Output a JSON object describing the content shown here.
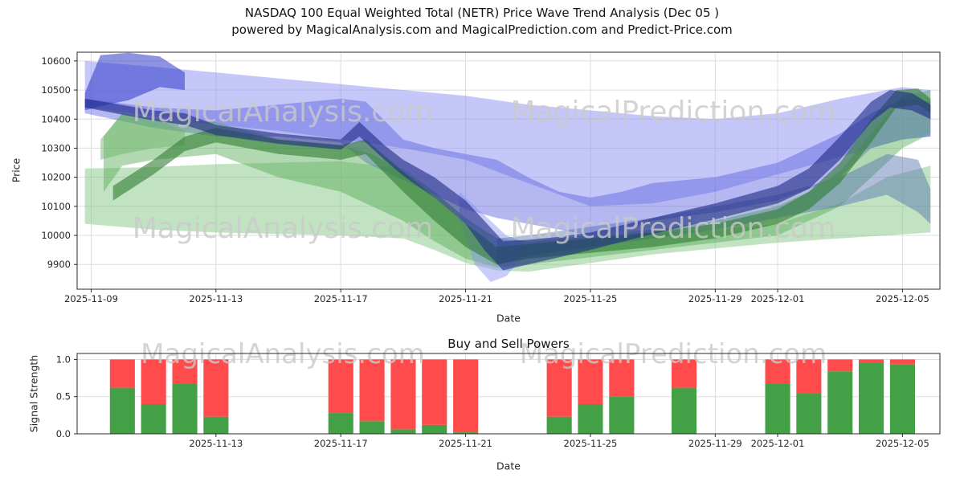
{
  "figure": {
    "title_line1": "NASDAQ 100 Equal Weighted Total (NETR) Price Wave Trend Analysis (Dec 05 )",
    "title_line2": "powered by MagicalAnalysis.com and MagicalPrediction.com and Predict-Price.com"
  },
  "watermarks": {
    "left_text": "MagicalAnalysis.com",
    "right_text": "MagicalPrediction.com",
    "color": "#c9c9c9"
  },
  "chart_data": [
    {
      "type": "area",
      "name": "price-wave-trend",
      "ylabel": "Price",
      "xlabel": "Date",
      "epoch_date": "2025-11-09",
      "xlim_days": [
        -0.45,
        27.2
      ],
      "ylim": [
        9815,
        10630
      ],
      "grid": true,
      "x_ticks": [
        {
          "date": "2025-11-09",
          "label": "2025-11-09"
        },
        {
          "date": "2025-11-13",
          "label": "2025-11-13"
        },
        {
          "date": "2025-11-17",
          "label": "2025-11-17"
        },
        {
          "date": "2025-11-21",
          "label": "2025-11-21"
        },
        {
          "date": "2025-11-25",
          "label": "2025-11-25"
        },
        {
          "date": "2025-11-29",
          "label": "2025-11-29"
        },
        {
          "date": "2025-12-01",
          "label": "2025-12-01"
        },
        {
          "date": "2025-12-05",
          "label": "2025-12-05"
        }
      ],
      "y_ticks": [
        {
          "value": 9900,
          "label": "9900"
        },
        {
          "value": 10000,
          "label": "10000"
        },
        {
          "value": 10100,
          "label": "10100"
        },
        {
          "value": 10200,
          "label": "10200"
        },
        {
          "value": 10300,
          "label": "10300"
        },
        {
          "value": 10400,
          "label": "10400"
        },
        {
          "value": 10500,
          "label": "10500"
        },
        {
          "value": 10600,
          "label": "10600"
        }
      ],
      "bands": [
        {
          "name": "blue-wide-upper",
          "color": "#8a8ff2",
          "opacity": 0.5,
          "days": [
            -0.2,
            2,
            4,
            6,
            8,
            10,
            12,
            14,
            16,
            18,
            20,
            22,
            24,
            26,
            26.9
          ],
          "upper": [
            10600,
            10580,
            10560,
            10540,
            10520,
            10500,
            10480,
            10450,
            10430,
            10410,
            10400,
            10420,
            10470,
            10510,
            10500
          ],
          "lower": [
            10440,
            10410,
            10380,
            10360,
            10330,
            10300,
            10260,
            10180,
            10100,
            10110,
            10150,
            10210,
            10270,
            10330,
            10340
          ]
        },
        {
          "name": "green-wide-lower",
          "color": "#86c786",
          "opacity": 0.5,
          "days": [
            -0.2,
            2,
            4,
            6,
            8,
            10,
            11,
            12,
            13,
            14,
            16,
            18,
            20,
            22,
            24,
            25.5,
            26.9
          ],
          "upper": [
            10230,
            10235,
            10245,
            10250,
            10255,
            10230,
            10150,
            10060,
            9990,
            9975,
            9995,
            10010,
            10020,
            10040,
            10110,
            10200,
            10240
          ],
          "lower": [
            10040,
            10020,
            10010,
            10005,
            10000,
            9990,
            9950,
            9905,
            9880,
            9875,
            9905,
            9935,
            9955,
            9975,
            9990,
            10000,
            10010
          ]
        },
        {
          "name": "blue-mid",
          "color": "#5a5fe0",
          "opacity": 0.45,
          "days": [
            -0.2,
            2,
            4,
            6,
            8,
            8.8,
            10,
            11,
            12,
            13,
            14,
            15,
            16,
            17,
            18,
            20,
            22,
            24,
            25,
            26,
            26.9
          ],
          "upper": [
            10470,
            10440,
            10430,
            10450,
            10470,
            10460,
            10330,
            10300,
            10280,
            10260,
            10200,
            10150,
            10130,
            10150,
            10180,
            10200,
            10250,
            10350,
            10420,
            10470,
            10460
          ],
          "lower": [
            10420,
            10370,
            10340,
            10340,
            10320,
            10250,
            10190,
            10140,
            10090,
            10060,
            10040,
            10020,
            10000,
            10010,
            10050,
            10080,
            10120,
            10200,
            10300,
            10330,
            10340
          ]
        },
        {
          "name": "green-mid",
          "color": "#55a855",
          "opacity": 0.45,
          "days": [
            0.4,
            1,
            2,
            4,
            6,
            8,
            9,
            10,
            11,
            12,
            13,
            14,
            16,
            18,
            20,
            22,
            23,
            24,
            25,
            26,
            26.9
          ],
          "upper": [
            10340,
            10420,
            10400,
            10390,
            10330,
            10310,
            10280,
            10220,
            10150,
            10060,
            9990,
            9980,
            10000,
            10020,
            10050,
            10100,
            10150,
            10220,
            10350,
            10480,
            10500
          ],
          "lower": [
            10150,
            10240,
            10260,
            10280,
            10200,
            10150,
            10100,
            10050,
            9980,
            9920,
            9890,
            9900,
            9925,
            9950,
            9975,
            10000,
            10050,
            10100,
            10200,
            10300,
            10350
          ]
        },
        {
          "name": "blue-down-spike",
          "color": "#8a8ff2",
          "opacity": 0.45,
          "days": [
            11.8,
            12.3,
            12.8,
            13.3,
            13.8
          ],
          "upper": [
            10150,
            10100,
            10050,
            10000,
            9980
          ],
          "lower": [
            10050,
            9900,
            9840,
            9860,
            9920
          ]
        },
        {
          "name": "steel-band-right",
          "color": "#4f6fb0",
          "opacity": 0.45,
          "days": [
            13,
            14,
            16,
            18,
            20,
            22,
            24,
            25.5,
            26.5,
            26.9
          ],
          "upper": [
            9990,
            10000,
            10030,
            10060,
            10100,
            10140,
            10200,
            10280,
            10260,
            10160
          ],
          "lower": [
            9900,
            9930,
            9960,
            9990,
            10020,
            10060,
            10100,
            10140,
            10080,
            10040
          ]
        },
        {
          "name": "green-blob-left",
          "color": "#63b463",
          "opacity": 0.45,
          "days": [
            0.3,
            1,
            2,
            3
          ],
          "upper": [
            10330,
            10420,
            10400,
            10360
          ],
          "lower": [
            10260,
            10280,
            10300,
            10310
          ]
        },
        {
          "name": "navy-blob-topleft",
          "color": "#3038c8",
          "opacity": 0.55,
          "days": [
            -0.2,
            0.3,
            1.2,
            2.2,
            3.0
          ],
          "upper": [
            10490,
            10620,
            10628,
            10615,
            10560
          ],
          "lower": [
            10430,
            10445,
            10465,
            10510,
            10500
          ]
        },
        {
          "name": "green-dark-line",
          "color": "#2f7d32",
          "opacity": 0.6,
          "days": [
            0.7,
            2,
            3,
            4,
            5,
            6,
            8,
            8.8,
            10,
            11,
            12,
            13,
            14,
            16,
            18,
            20,
            22,
            23,
            24,
            25,
            25.8,
            26.5,
            26.9
          ],
          "upper": [
            10170,
            10260,
            10340,
            10370,
            10350,
            10330,
            10310,
            10330,
            10220,
            10130,
            10040,
            9960,
            9970,
            9990,
            10010,
            10040,
            10090,
            10150,
            10250,
            10400,
            10500,
            10505,
            10470
          ],
          "lower": [
            10120,
            10210,
            10290,
            10320,
            10300,
            10280,
            10260,
            10280,
            10150,
            10050,
            9960,
            9900,
            9920,
            9940,
            9960,
            9990,
            10040,
            10090,
            10180,
            10320,
            10440,
            10450,
            10420
          ]
        },
        {
          "name": "navy-dark-line",
          "color": "#1e2a85",
          "opacity": 0.6,
          "days": [
            -0.2,
            2,
            3,
            4,
            6,
            8,
            8.6,
            9.4,
            10,
            11,
            12,
            12.6,
            13.2,
            14,
            15,
            16,
            18,
            20,
            22,
            23,
            24,
            25,
            25.6,
            26.3,
            26.9
          ],
          "upper": [
            10470,
            10430,
            10420,
            10380,
            10350,
            10330,
            10390,
            10310,
            10260,
            10200,
            10120,
            10050,
            9980,
            9985,
            9995,
            10010,
            10060,
            10110,
            10170,
            10230,
            10340,
            10460,
            10500,
            10490,
            10450
          ],
          "lower": [
            10440,
            10395,
            10380,
            10345,
            10315,
            10295,
            10340,
            10260,
            10205,
            10130,
            10040,
            9950,
            9880,
            9900,
            9925,
            9950,
            10005,
            10055,
            10110,
            10160,
            10260,
            10390,
            10440,
            10430,
            10400
          ]
        }
      ]
    },
    {
      "type": "bar",
      "name": "buy-sell-powers",
      "title": "Buy and Sell Powers",
      "ylabel": "Signal Strength",
      "xlabel": "Date",
      "epoch_date": "2025-11-09",
      "xlim_days": [
        -0.45,
        27.2
      ],
      "ylim": [
        0,
        1.08
      ],
      "grid": true,
      "bar_width_days": 0.8,
      "x_ticks": [
        {
          "date": "2025-11-13",
          "label": "2025-11-13"
        },
        {
          "date": "2025-11-17",
          "label": "2025-11-17"
        },
        {
          "date": "2025-11-21",
          "label": "2025-11-21"
        },
        {
          "date": "2025-11-25",
          "label": "2025-11-25"
        },
        {
          "date": "2025-11-29",
          "label": "2025-11-29"
        },
        {
          "date": "2025-12-01",
          "label": "2025-12-01"
        },
        {
          "date": "2025-12-05",
          "label": "2025-12-05"
        }
      ],
      "y_ticks": [
        {
          "value": 0,
          "label": "0.0"
        },
        {
          "value": 0.5,
          "label": "0.5"
        },
        {
          "value": 1,
          "label": "1.0"
        }
      ],
      "series": [
        {
          "name": "buy",
          "color": "#43a047"
        },
        {
          "name": "sell",
          "color": "#ff4b4b"
        }
      ],
      "bars": [
        {
          "date": "2025-11-10",
          "buy": 0.62,
          "sell": 0.38
        },
        {
          "date": "2025-11-11",
          "buy": 0.4,
          "sell": 0.6
        },
        {
          "date": "2025-11-12",
          "buy": 0.67,
          "sell": 0.33
        },
        {
          "date": "2025-11-13",
          "buy": 0.23,
          "sell": 0.77
        },
        {
          "date": "2025-11-17",
          "buy": 0.28,
          "sell": 0.72
        },
        {
          "date": "2025-11-18",
          "buy": 0.17,
          "sell": 0.83
        },
        {
          "date": "2025-11-19",
          "buy": 0.06,
          "sell": 0.94
        },
        {
          "date": "2025-11-20",
          "buy": 0.12,
          "sell": 0.88
        },
        {
          "date": "2025-11-21",
          "buy": 0.02,
          "sell": 0.98
        },
        {
          "date": "2025-11-24",
          "buy": 0.23,
          "sell": 0.77
        },
        {
          "date": "2025-11-25",
          "buy": 0.4,
          "sell": 0.6
        },
        {
          "date": "2025-11-26",
          "buy": 0.5,
          "sell": 0.5
        },
        {
          "date": "2025-11-28",
          "buy": 0.62,
          "sell": 0.38
        },
        {
          "date": "2025-12-01",
          "buy": 0.67,
          "sell": 0.33
        },
        {
          "date": "2025-12-02",
          "buy": 0.55,
          "sell": 0.45
        },
        {
          "date": "2025-12-03",
          "buy": 0.84,
          "sell": 0.16
        },
        {
          "date": "2025-12-04",
          "buy": 0.95,
          "sell": 0.05
        },
        {
          "date": "2025-12-05",
          "buy": 0.93,
          "sell": 0.07
        }
      ]
    }
  ]
}
